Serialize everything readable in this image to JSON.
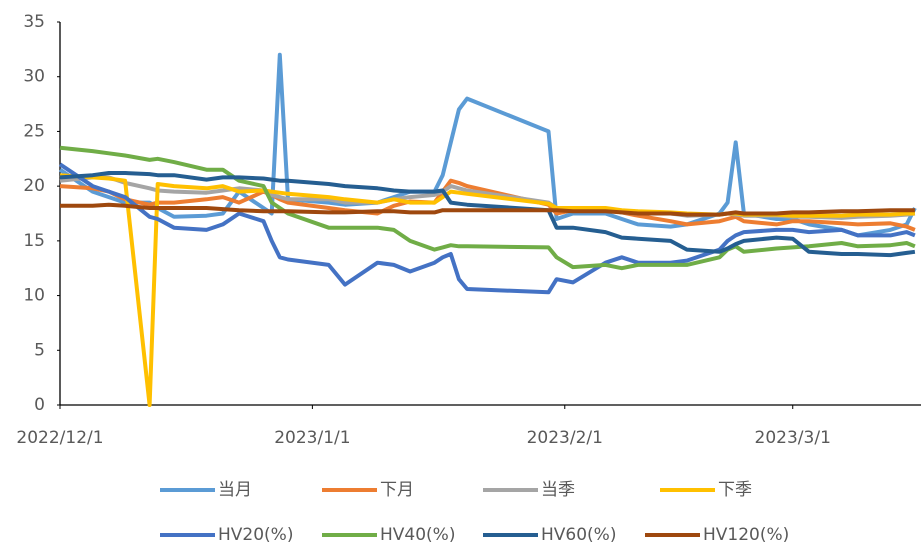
{
  "chart_data": {
    "type": "line",
    "x": [
      "2022/12/1",
      "2022/12/5",
      "2022/12/7",
      "2022/12/9",
      "2022/12/12",
      "2022/12/13",
      "2022/12/15",
      "2022/12/19",
      "2022/12/21",
      "2022/12/23",
      "2022/12/26",
      "2022/12/27",
      "2022/12/28",
      "2022/12/29",
      "2023/1/3",
      "2023/1/5",
      "2023/1/9",
      "2023/1/11",
      "2023/1/13",
      "2023/1/16",
      "2023/1/17",
      "2023/1/18",
      "2023/1/19",
      "2023/1/20",
      "2023/1/30",
      "2023/1/31",
      "2023/2/2",
      "2023/2/6",
      "2023/2/8",
      "2023/2/10",
      "2023/2/14",
      "2023/2/16",
      "2023/2/20",
      "2023/2/21",
      "2023/2/22",
      "2023/2/23",
      "2023/2/27",
      "2023/3/1",
      "2023/3/3",
      "2023/3/7",
      "2023/3/9",
      "2023/3/13",
      "2023/3/15",
      "2023/3/16"
    ],
    "xlim": [
      "2022/12/1",
      "2023/3/17"
    ],
    "xticks": [
      "2022/12/1",
      "2023/1/1",
      "2023/2/1",
      "2023/3/1"
    ],
    "ylim": [
      0,
      35
    ],
    "yticks": [
      0,
      5,
      10,
      15,
      20,
      25,
      30,
      35
    ],
    "grid": false,
    "series": [
      {
        "name": "当月",
        "color": "#5b9bd5",
        "values": [
          21.5,
          19.5,
          19,
          18.5,
          18.5,
          18,
          17.2,
          17.3,
          17.5,
          19.5,
          18,
          17.5,
          32,
          18.8,
          18.5,
          18.3,
          18.5,
          19,
          19.5,
          19.5,
          21,
          24,
          27,
          28,
          25,
          17,
          17.5,
          17.5,
          17,
          16.5,
          16.3,
          16.5,
          17.5,
          18.5,
          24,
          17.5,
          17,
          17,
          16.5,
          16,
          15.5,
          16,
          16.5,
          18
        ]
      },
      {
        "name": "下月",
        "color": "#ed7d31",
        "values": [
          20,
          19.8,
          19.5,
          18.8,
          18.3,
          18.5,
          18.5,
          18.8,
          19,
          18.5,
          19.5,
          19.2,
          18.8,
          18.5,
          18,
          17.8,
          17.5,
          18.2,
          18.6,
          18.5,
          19.5,
          20.5,
          20.3,
          20,
          18.3,
          17.5,
          17.8,
          17.8,
          17.6,
          17.3,
          16.8,
          16.5,
          16.8,
          17,
          17.2,
          16.8,
          16.5,
          16.8,
          16.8,
          16.6,
          16.5,
          16.6,
          16.3,
          16
        ]
      },
      {
        "name": "当季",
        "color": "#a5a5a5",
        "values": [
          20.5,
          20.8,
          20.8,
          20.3,
          19.8,
          19.6,
          19.5,
          19.4,
          19.6,
          19.8,
          19.6,
          19.2,
          19,
          18.8,
          18.8,
          18.5,
          18.5,
          18.8,
          19,
          19.2,
          19.5,
          20,
          19.8,
          19.6,
          18.5,
          18,
          18,
          17.8,
          17.6,
          17.5,
          17.5,
          17.3,
          17.4,
          17.5,
          17.4,
          17.3,
          17.3,
          17.2,
          17.2,
          17.1,
          17.2,
          17.3,
          17.4,
          17.5
        ]
      },
      {
        "name": "下季",
        "color": "#ffc000",
        "values": [
          21,
          20.8,
          20.7,
          20.5,
          0,
          20.2,
          20,
          19.8,
          20,
          19.5,
          19.6,
          19.5,
          19.4,
          19.3,
          19,
          18.8,
          18.5,
          18.8,
          18.5,
          18.5,
          19,
          19.5,
          19.4,
          19.3,
          18.4,
          18,
          18,
          18,
          17.8,
          17.7,
          17.6,
          17.5,
          17.4,
          17.5,
          17.5,
          17.4,
          17.4,
          17.3,
          17.3,
          17.3,
          17.4,
          17.4,
          17.5,
          17.5
        ]
      },
      {
        "name": "HV20(%)",
        "color": "#4472c4",
        "values": [
          22,
          20,
          19.5,
          19,
          17.2,
          17,
          16.2,
          16,
          16.5,
          17.5,
          16.8,
          15,
          13.5,
          13.3,
          12.8,
          11,
          13,
          12.8,
          12.2,
          13,
          13.5,
          13.8,
          11.5,
          10.6,
          10.3,
          11.5,
          11.2,
          13,
          13.5,
          13,
          13,
          13.2,
          14.2,
          15,
          15.5,
          15.8,
          16,
          16,
          15.8,
          16,
          15.5,
          15.5,
          15.8,
          15.5
        ]
      },
      {
        "name": "HV40(%)",
        "color": "#70ad47",
        "values": [
          23.5,
          23.2,
          23,
          22.8,
          22.4,
          22.5,
          22.2,
          21.5,
          21.5,
          20.5,
          20,
          18.5,
          18,
          17.5,
          16.2,
          16.2,
          16.2,
          16,
          15,
          14.2,
          14.4,
          14.6,
          14.5,
          14.5,
          14.4,
          13.5,
          12.6,
          12.8,
          12.5,
          12.8,
          12.8,
          12.8,
          13.5,
          14.2,
          14.5,
          14,
          14.3,
          14.4,
          14.5,
          14.8,
          14.5,
          14.6,
          14.8,
          14.5
        ]
      },
      {
        "name": "HV60(%)",
        "color": "#255e91",
        "values": [
          20.8,
          21,
          21.2,
          21.2,
          21.1,
          21,
          21,
          20.6,
          20.8,
          20.8,
          20.7,
          20.6,
          20.5,
          20.5,
          20.2,
          20,
          19.8,
          19.6,
          19.5,
          19.5,
          19.6,
          18.5,
          18.4,
          18.3,
          17.8,
          16.2,
          16.2,
          15.8,
          15.3,
          15.2,
          15,
          14.2,
          14,
          14.3,
          14.7,
          15,
          15.3,
          15.2,
          14,
          13.8,
          13.8,
          13.7,
          13.9,
          14
        ]
      },
      {
        "name": "HV120(%)",
        "color": "#9e480e",
        "values": [
          18.2,
          18.2,
          18.3,
          18.2,
          18,
          18,
          18,
          18,
          17.9,
          17.8,
          17.7,
          17.7,
          17.7,
          17.7,
          17.6,
          17.6,
          17.7,
          17.7,
          17.6,
          17.6,
          17.8,
          17.8,
          17.8,
          17.8,
          17.8,
          17.8,
          17.7,
          17.7,
          17.6,
          17.5,
          17.5,
          17.4,
          17.4,
          17.5,
          17.6,
          17.5,
          17.5,
          17.6,
          17.6,
          17.7,
          17.7,
          17.8,
          17.8,
          17.8
        ]
      }
    ]
  }
}
